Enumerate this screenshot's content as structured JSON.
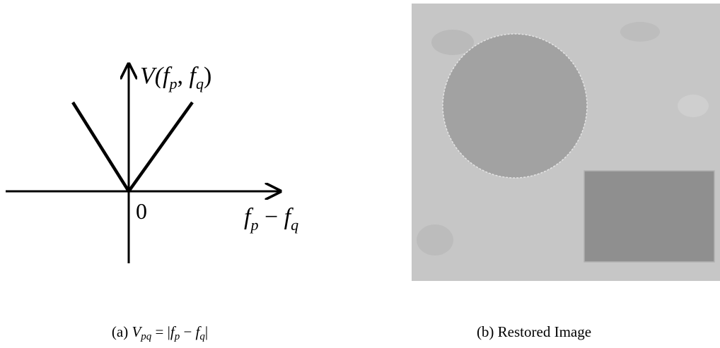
{
  "panel_a": {
    "y_axis_label": [
      "V(",
      "f",
      "p",
      ", ",
      "f",
      "q",
      ")"
    ],
    "origin_label": "0",
    "x_axis_label": [
      "f",
      "p",
      " − ",
      "f",
      "q"
    ],
    "caption": [
      "(a) ",
      "V",
      "pq",
      " = |",
      "f",
      "p",
      " − ",
      "f",
      "q",
      "|"
    ]
  },
  "panel_b": {
    "caption": "(b) Restored Image"
  }
}
